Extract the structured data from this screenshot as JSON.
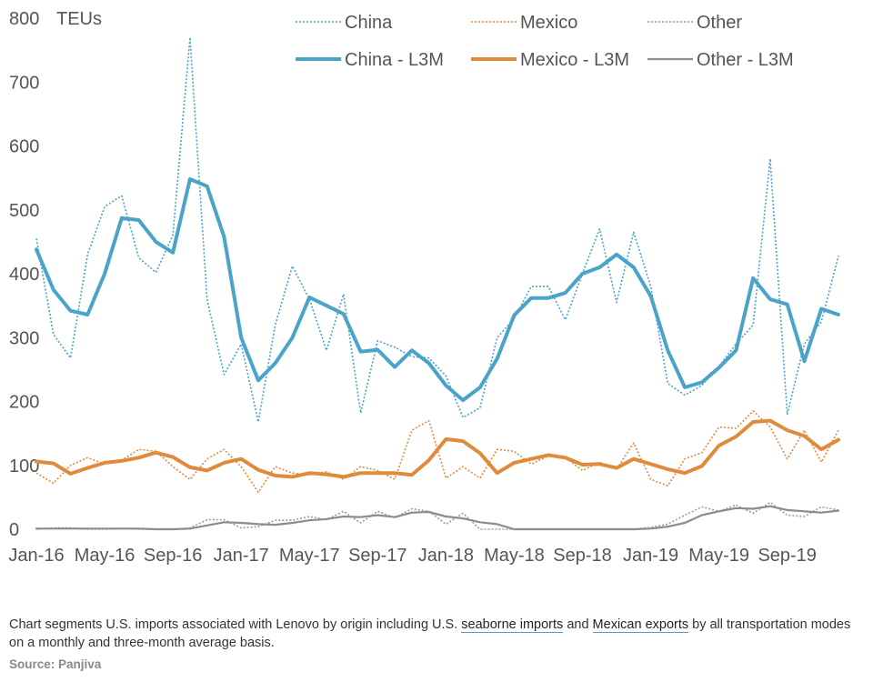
{
  "chart_data": {
    "type": "line",
    "ylabel": "TEUs",
    "ylim": [
      0,
      800
    ],
    "yticks": [
      0,
      100,
      200,
      300,
      400,
      500,
      600,
      700,
      800
    ],
    "x_tick_labels": [
      "Jan-16",
      "May-16",
      "Sep-16",
      "Jan-17",
      "May-17",
      "Sep-17",
      "Jan-18",
      "May-18",
      "Sep-18",
      "Jan-19",
      "May-19",
      "Sep-19"
    ],
    "x_tick_months": [
      0,
      4,
      8,
      12,
      16,
      20,
      24,
      28,
      32,
      36,
      40,
      44
    ],
    "n_months": 48,
    "legend_position": "top-right",
    "series": [
      {
        "name": "China",
        "style": "dotted",
        "color": "#4aa3c8",
        "values": [
          455,
          305,
          268,
          430,
          505,
          522,
          425,
          402,
          460,
          770,
          360,
          242,
          290,
          168,
          320,
          412,
          360,
          280,
          368,
          182,
          295,
          285,
          270,
          268,
          240,
          175,
          190,
          300,
          330,
          380,
          380,
          328,
          400,
          470,
          355,
          465,
          380,
          228,
          210,
          225,
          255,
          290,
          320,
          580,
          180,
          290,
          325,
          428
        ]
      },
      {
        "name": "Mexico",
        "style": "dotted",
        "color": "#e08a3c",
        "values": [
          88,
          72,
          100,
          112,
          102,
          108,
          125,
          122,
          98,
          78,
          110,
          125,
          98,
          58,
          98,
          88,
          85,
          90,
          78,
          98,
          92,
          78,
          155,
          170,
          80,
          98,
          80,
          125,
          122,
          102,
          115,
          112,
          92,
          105,
          94,
          135,
          78,
          68,
          110,
          120,
          160,
          158,
          185,
          160,
          110,
          155,
          105,
          155
        ]
      },
      {
        "name": "Other",
        "style": "dotted",
        "color": "#9a9a9a",
        "values": [
          0,
          2,
          2,
          0,
          0,
          1,
          0,
          0,
          0,
          2,
          15,
          15,
          2,
          4,
          14,
          14,
          20,
          15,
          28,
          10,
          28,
          18,
          32,
          28,
          8,
          25,
          0,
          0,
          0,
          0,
          0,
          0,
          0,
          0,
          0,
          0,
          3,
          8,
          22,
          35,
          28,
          38,
          25,
          42,
          22,
          20,
          35,
          30
        ]
      },
      {
        "name": "China - L3M",
        "style": "solid",
        "color": "#4aa3c8",
        "values": [
          438,
          375,
          342,
          336,
          400,
          487,
          484,
          450,
          433,
          548,
          537,
          458,
          300,
          233,
          260,
          300,
          363,
          350,
          337,
          278,
          281,
          254,
          280,
          260,
          225,
          202,
          222,
          267,
          335,
          362,
          362,
          370,
          400,
          410,
          430,
          410,
          365,
          280,
          222,
          230,
          253,
          280,
          393,
          360,
          352,
          263,
          345,
          336
        ]
      },
      {
        "name": "Mexico - L3M",
        "style": "solid",
        "color": "#e08a3c",
        "values": [
          106,
          103,
          87,
          96,
          104,
          107,
          112,
          120,
          113,
          97,
          92,
          104,
          110,
          93,
          84,
          82,
          88,
          86,
          82,
          88,
          88,
          88,
          85,
          108,
          141,
          138,
          119,
          88,
          104,
          110,
          116,
          112,
          101,
          102,
          96,
          110,
          102,
          94,
          88,
          99,
          131,
          145,
          168,
          170,
          155,
          146,
          125,
          140
        ]
      },
      {
        "name": "Other - L3M",
        "style": "solid",
        "color": "#8c8c8c",
        "values": [
          1,
          1,
          1,
          1,
          1,
          1,
          1,
          0,
          0,
          1,
          6,
          11,
          10,
          8,
          7,
          10,
          14,
          16,
          20,
          19,
          22,
          19,
          26,
          27,
          20,
          17,
          11,
          8,
          0,
          0,
          0,
          0,
          0,
          0,
          0,
          0,
          1,
          4,
          10,
          22,
          28,
          33,
          32,
          36,
          30,
          28,
          26,
          29
        ]
      }
    ]
  },
  "caption": {
    "part1": "Chart segments U.S. imports associated with Lenovo by origin including U.S. ",
    "link1": "seaborne imports",
    "part2": " and ",
    "link2": "Mexican exports",
    "part3": " by all transportation modes on a monthly and three-month average basis."
  },
  "source": "Source: Panjiva"
}
